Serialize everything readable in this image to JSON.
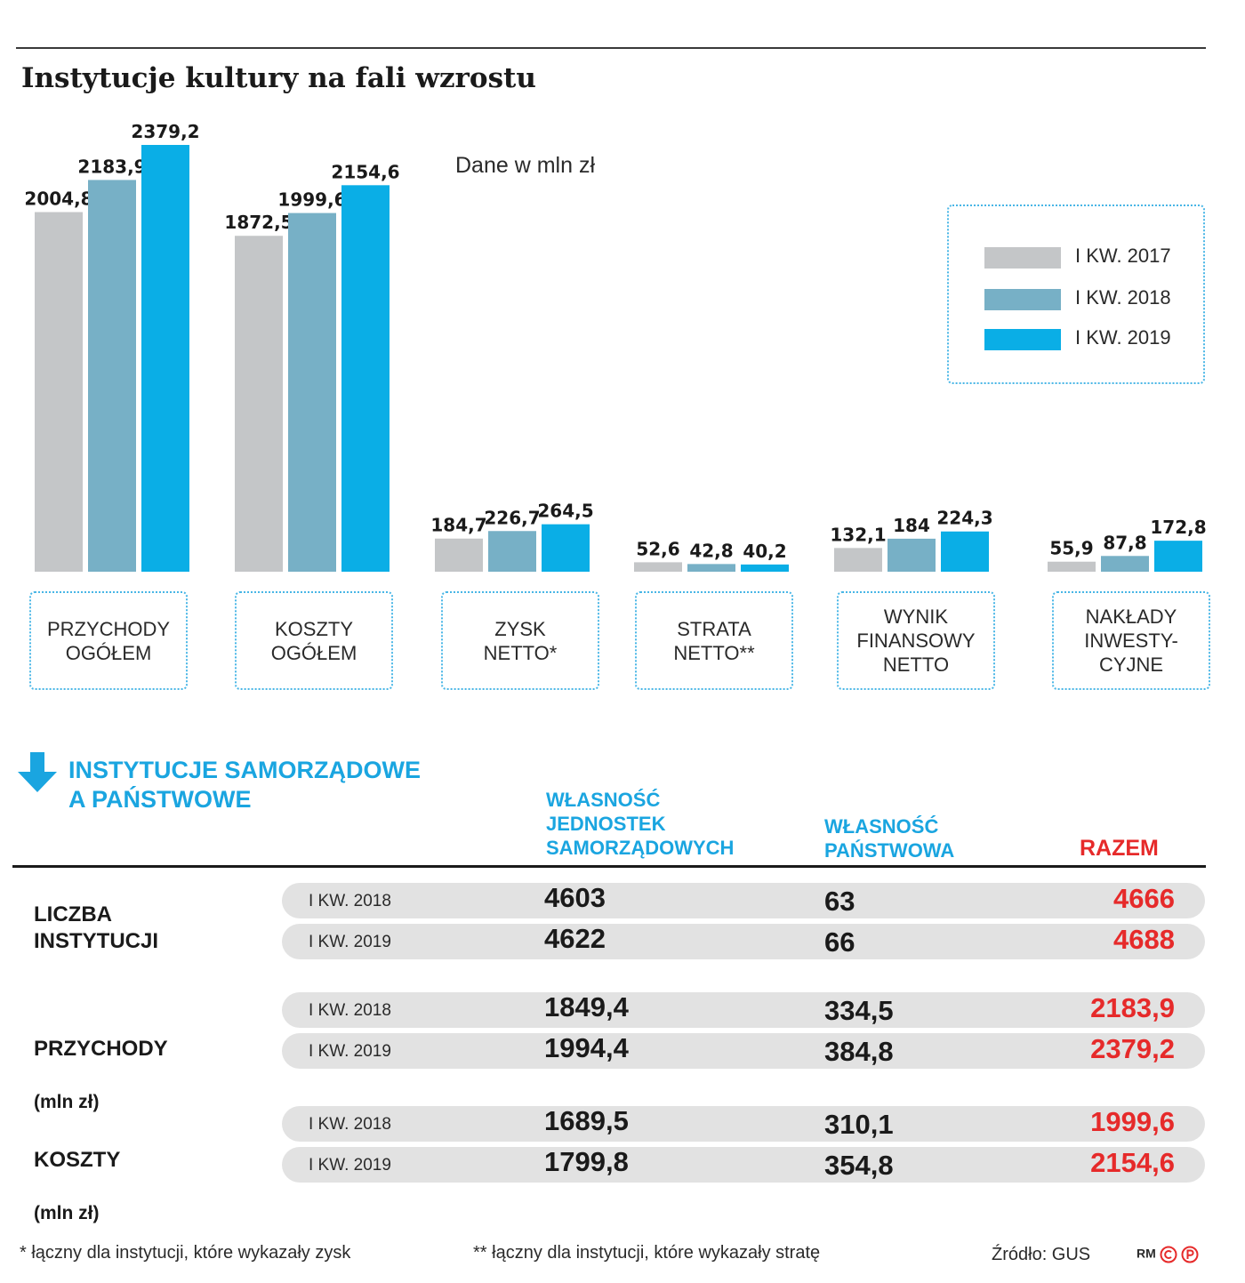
{
  "title": "Instytucje kultury na fali wzrostu",
  "unit_note": "Dane w mln zł",
  "chart_data": {
    "type": "bar",
    "title": "Instytucje kultury na fali wzrostu",
    "ylabel": "",
    "xlabel": "",
    "ylim": [
      0,
      2379.2
    ],
    "categories": [
      "PRZYCHODY OGÓŁEM",
      "KOSZTY OGÓŁEM",
      "ZYSK NETTO*",
      "STRATA NETTO**",
      "WYNIK FINANSOWY NETTO",
      "NAKŁADY INWESTY-CYJNE"
    ],
    "series": [
      {
        "name": "I KW. 2017",
        "color": "#c4c6c8",
        "values": [
          2004.8,
          1872.5,
          184.7,
          52.6,
          132.1,
          55.9
        ],
        "labels": [
          "2004,8",
          "1872,5",
          "184,7",
          "52,6",
          "132,1",
          "55,9"
        ]
      },
      {
        "name": "I KW. 2018",
        "color": "#77b0c6",
        "values": [
          2183.9,
          1999.6,
          226.7,
          42.8,
          184,
          87.8
        ],
        "labels": [
          "2183,9",
          "1999,6",
          "226,7",
          "42,8",
          "184",
          "87,8"
        ]
      },
      {
        "name": "I KW. 2019",
        "color": "#0aaee6",
        "values": [
          2379.2,
          2154.6,
          264.5,
          40.2,
          224.3,
          172.8
        ],
        "labels": [
          "2379,2",
          "2154,6",
          "264,5",
          "40,2",
          "224,3",
          "172,8"
        ]
      }
    ],
    "legend_position": "top-right",
    "grid": false
  },
  "category_boxes": [
    {
      "text": "PRZYCHODY\nOGÓŁEM"
    },
    {
      "text": "KOSZTY\nOGÓŁEM"
    },
    {
      "text": "ZYSK\nNETTO*"
    },
    {
      "text": "STRATA\nNETTO**"
    },
    {
      "text": "WYNIK\nFINANSOWY\nNETTO"
    },
    {
      "text": "NAKŁADY\nINWESTY-\nCYJNE"
    }
  ],
  "table": {
    "section_title": "INSTYTUCJE SAMORZĄDOWE\nA PAŃSTWOWE",
    "columns": [
      "WŁASNOŚĆ\nJEDNOSTEK\nSAMORZĄDOWYCH",
      "WŁASNOŚĆ\nPAŃSTWOWA",
      "RAZEM"
    ],
    "groups": [
      {
        "label": "LICZBA\nINSTYTUCJI",
        "sub": "",
        "rows": [
          {
            "period": "I KW. 2018",
            "v1": "4603",
            "v2": "63",
            "v3": "4666"
          },
          {
            "period": "I KW. 2019",
            "v1": "4622",
            "v2": "66",
            "v3": "4688"
          }
        ]
      },
      {
        "label": "PRZYCHODY",
        "sub": "(mln zł)",
        "rows": [
          {
            "period": "I KW. 2018",
            "v1": "1849,4",
            "v2": "334,5",
            "v3": "2183,9"
          },
          {
            "period": "I KW. 2019",
            "v1": "1994,4",
            "v2": "384,8",
            "v3": "2379,2"
          }
        ]
      },
      {
        "label": "KOSZTY",
        "sub": "(mln zł)",
        "rows": [
          {
            "period": "I KW. 2018",
            "v1": "1689,5",
            "v2": "310,1",
            "v3": "1999,6"
          },
          {
            "period": "I KW. 2019",
            "v1": "1799,8",
            "v2": "354,8",
            "v3": "2154,6"
          }
        ]
      }
    ]
  },
  "footnotes": {
    "f1": "* łączny dla instytucji, które wykazały zysk",
    "f2": "** łączny dla instytucji, które wykazały stratę"
  },
  "source": "Źródło: GUS",
  "logo_text": "RM"
}
